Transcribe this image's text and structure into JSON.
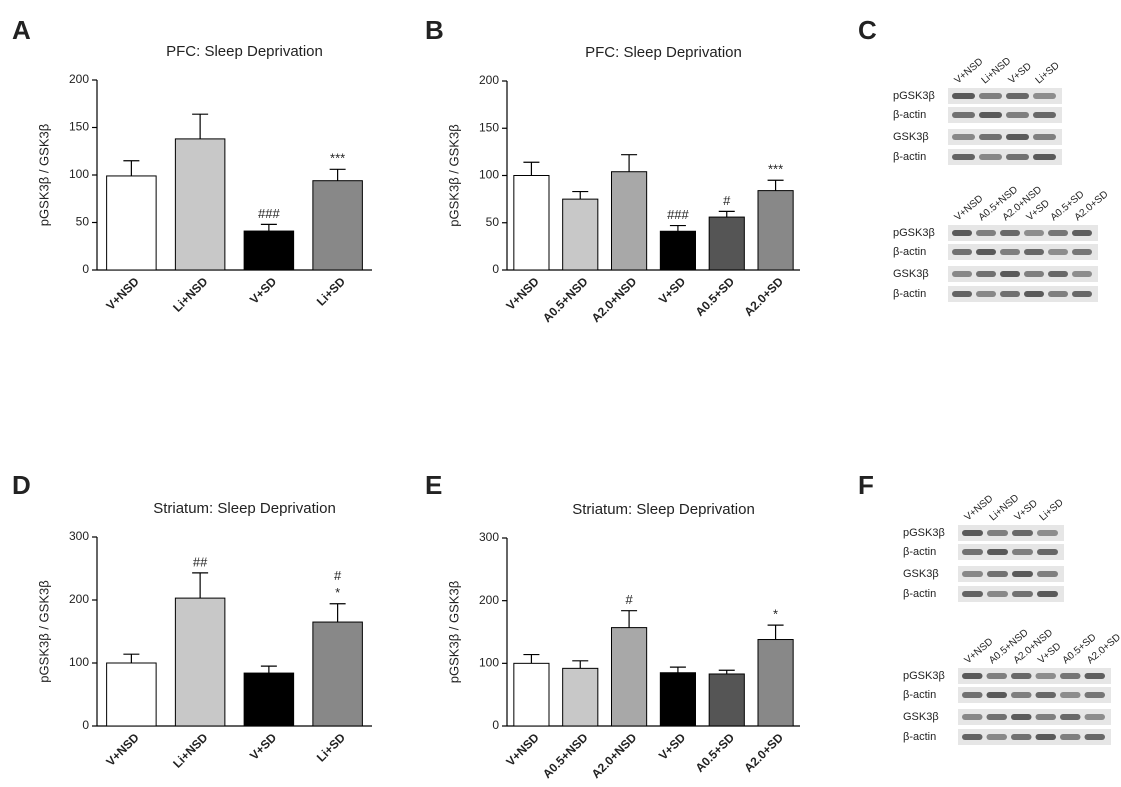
{
  "chart_data": [
    {
      "type": "bar",
      "panel": "A",
      "title": "PFC: Sleep Deprivation",
      "y_label": "pGSK3β / GSK3β",
      "categories": [
        "V+NSD",
        "Li+NSD",
        "V+SD",
        "Li+SD"
      ],
      "values": [
        99,
        138,
        41,
        94
      ],
      "errors": [
        16,
        26,
        7,
        12
      ],
      "colors": [
        "#ffffff",
        "#c8c8c8",
        "#000000",
        "#888888"
      ],
      "annotations": [
        null,
        null,
        [
          "###"
        ],
        [
          "***"
        ]
      ],
      "ylim": [
        0,
        200
      ],
      "yticks": [
        0,
        50,
        100,
        150,
        200
      ]
    },
    {
      "type": "bar",
      "panel": "B",
      "title": "PFC: Sleep Deprivation",
      "y_label": "pGSK3β / GSK3β",
      "categories": [
        "V+NSD",
        "A0.5+NSD",
        "A2.0+NSD",
        "V+SD",
        "A0.5+SD",
        "A2.0+SD"
      ],
      "values": [
        100,
        75,
        104,
        41,
        56,
        84
      ],
      "errors": [
        14,
        8,
        18,
        6,
        6,
        11
      ],
      "colors": [
        "#ffffff",
        "#c8c8c8",
        "#a8a8a8",
        "#000000",
        "#555555",
        "#888888"
      ],
      "annotations": [
        null,
        null,
        null,
        [
          "###"
        ],
        [
          "#"
        ],
        [
          "***"
        ]
      ],
      "ylim": [
        0,
        200
      ],
      "yticks": [
        0,
        50,
        100,
        150,
        200
      ]
    },
    {
      "type": "bar",
      "panel": "D",
      "title": "Striatum: Sleep Deprivation",
      "y_label": "pGSK3β / GSK3β",
      "categories": [
        "V+NSD",
        "Li+NSD",
        "V+SD",
        "Li+SD"
      ],
      "values": [
        100,
        203,
        84,
        165
      ],
      "errors": [
        14,
        40,
        11,
        29
      ],
      "colors": [
        "#ffffff",
        "#c8c8c8",
        "#000000",
        "#888888"
      ],
      "annotations": [
        null,
        [
          "##"
        ],
        null,
        [
          "#",
          "*"
        ]
      ],
      "ylim": [
        0,
        300
      ],
      "yticks": [
        0,
        100,
        200,
        300
      ]
    },
    {
      "type": "bar",
      "panel": "E",
      "title": "Striatum: Sleep Deprivation",
      "y_label": "pGSK3β / GSK3β",
      "categories": [
        "V+NSD",
        "A0.5+NSD",
        "A2.0+NSD",
        "V+SD",
        "A0.5+SD",
        "A2.0+SD"
      ],
      "values": [
        100,
        92,
        157,
        85,
        83,
        138
      ],
      "errors": [
        14,
        12,
        27,
        9,
        6,
        23
      ],
      "colors": [
        "#ffffff",
        "#c8c8c8",
        "#a8a8a8",
        "#000000",
        "#555555",
        "#888888"
      ],
      "annotations": [
        null,
        null,
        [
          "#"
        ],
        null,
        null,
        [
          "*"
        ]
      ],
      "ylim": [
        0,
        300
      ],
      "yticks": [
        0,
        100,
        200,
        300
      ]
    }
  ],
  "blots": [
    {
      "panel": "C",
      "groups": [
        {
          "lanes": [
            "V+NSD",
            "Li+NSD",
            "V+SD",
            "Li+SD"
          ],
          "rows": [
            "pGSK3β",
            "β-actin",
            "GSK3β",
            "β-actin"
          ]
        },
        {
          "lanes": [
            "V+NSD",
            "A0.5+NSD",
            "A2.0+NSD",
            "V+SD",
            "A0.5+SD",
            "A2.0+SD"
          ],
          "rows": [
            "pGSK3β",
            "β-actin",
            "GSK3β",
            "β-actin"
          ]
        }
      ]
    },
    {
      "panel": "F",
      "groups": [
        {
          "lanes": [
            "V+NSD",
            "Li+NSD",
            "V+SD",
            "Li+SD"
          ],
          "rows": [
            "pGSK3β",
            "β-actin",
            "GSK3β",
            "β-actin"
          ]
        },
        {
          "lanes": [
            "V+NSD",
            "A0.5+NSD",
            "A2.0+NSD",
            "V+SD",
            "A0.5+SD",
            "A2.0+SD"
          ],
          "rows": [
            "pGSK3β",
            "β-actin",
            "GSK3β",
            "β-actin"
          ]
        }
      ]
    }
  ]
}
